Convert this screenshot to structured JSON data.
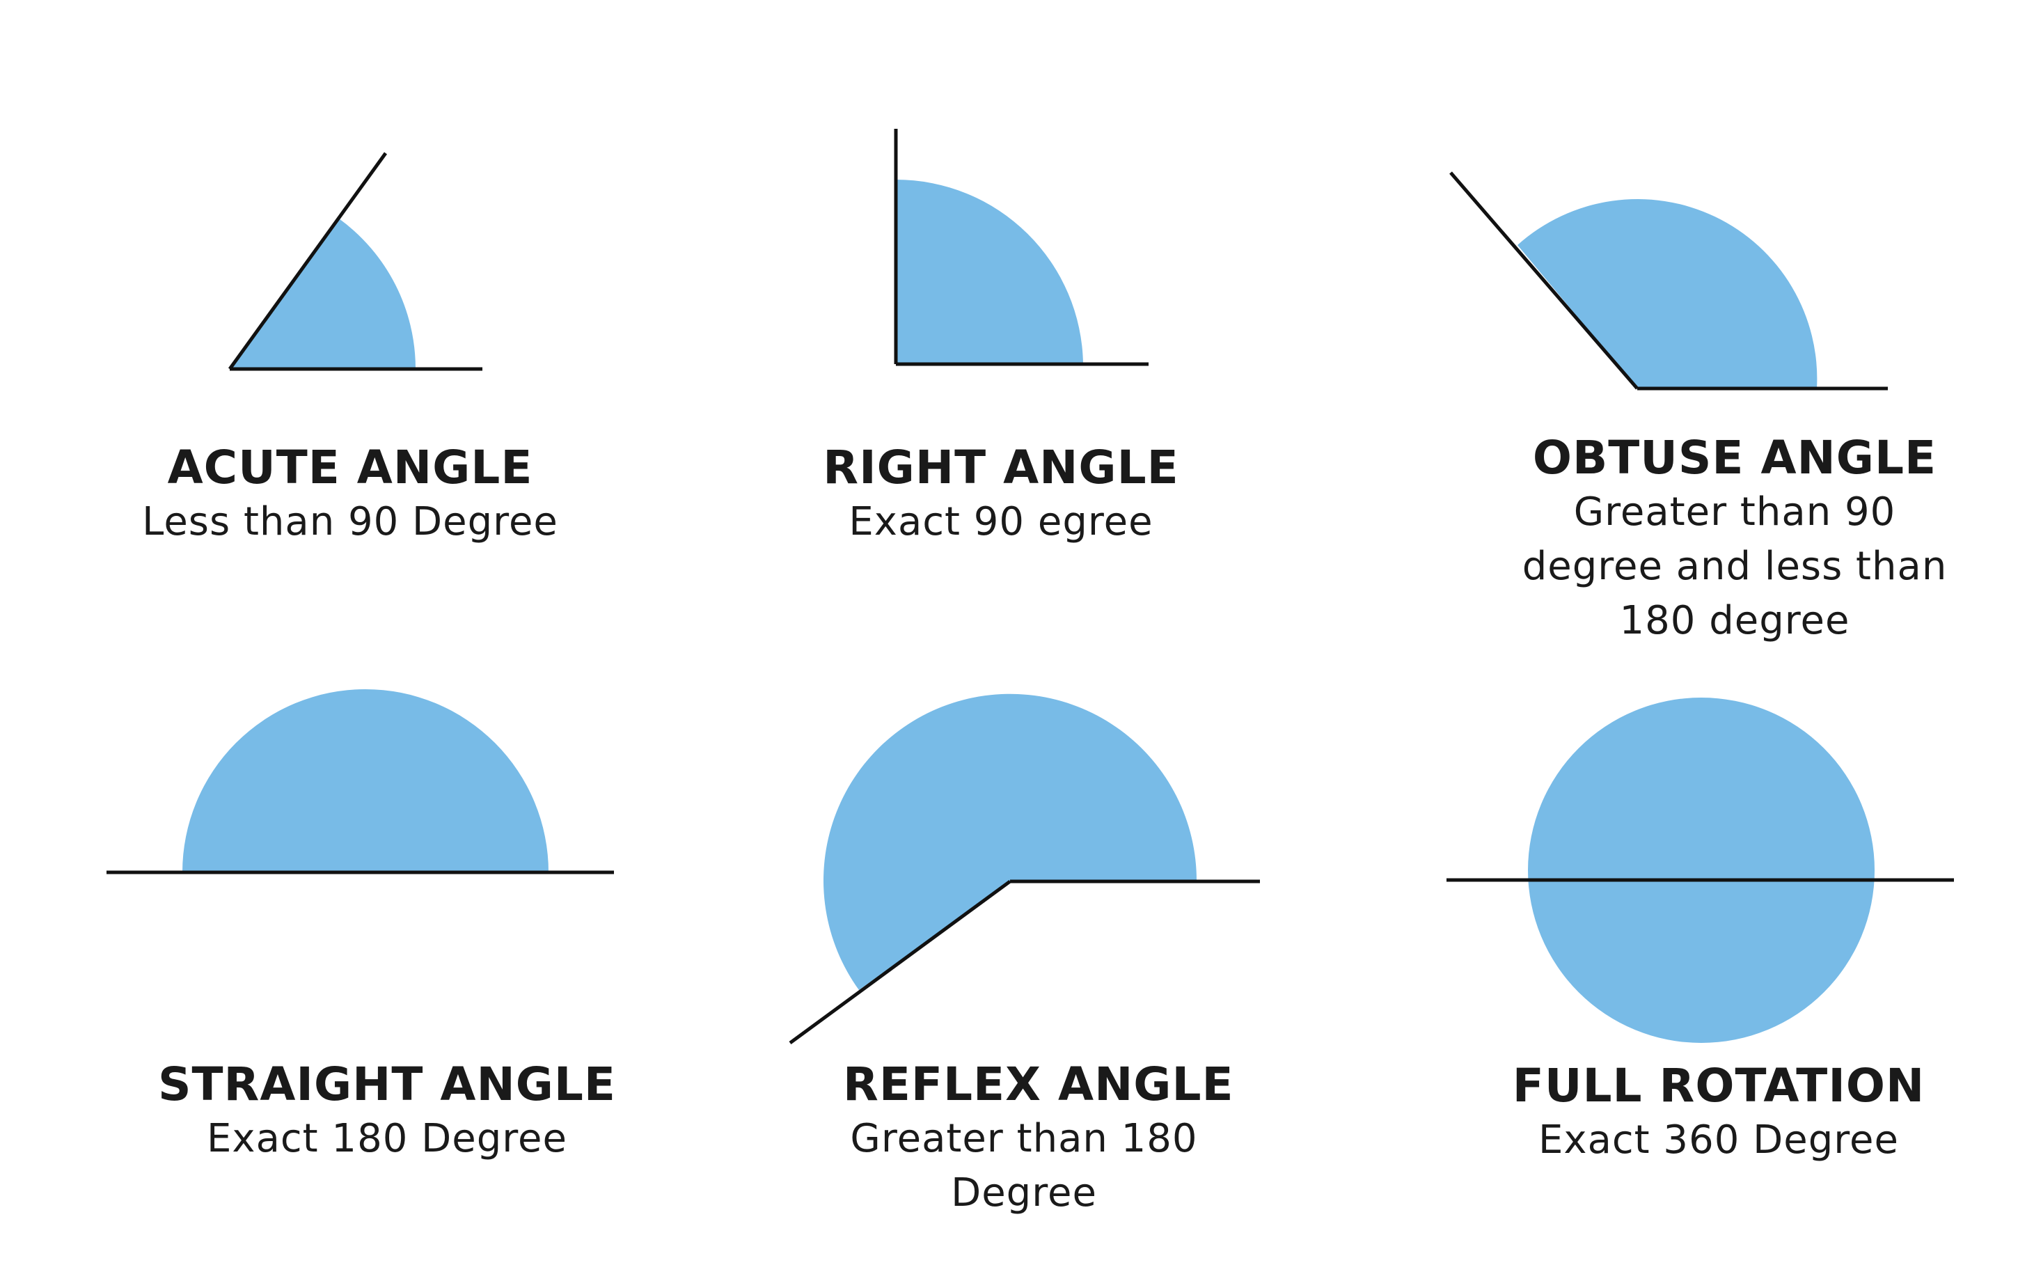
{
  "colors": {
    "fill": "#78bbe7",
    "ray": "#111111",
    "text": "#1a1a1a",
    "background": "#ffffff"
  },
  "angles": [
    {
      "title": "ACUTE ANGLE",
      "description": "Less than 90 Degree"
    },
    {
      "title": "RIGHT ANGLE",
      "description": "Exact 90 egree"
    },
    {
      "title": "OBTUSE ANGLE",
      "description": "Greater than 90 degree and less than 180 degree"
    },
    {
      "title": "STRAIGHT ANGLE",
      "description": "Exact 180 Degree"
    },
    {
      "title": "REFLEX ANGLE",
      "description": "Greater than 180 Degree"
    },
    {
      "title": "FULL ROTATION",
      "description": "Exact 360 Degree"
    }
  ]
}
